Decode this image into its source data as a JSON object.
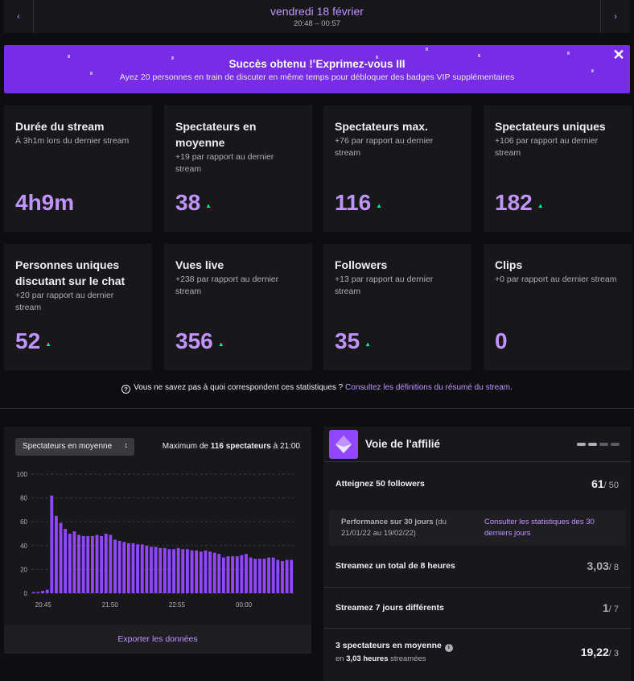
{
  "header": {
    "date": "vendredi 18 février",
    "time_range": "20:48 – 00:57",
    "prev_icon": "chevron-left-icon",
    "next_icon": "chevron-right-icon"
  },
  "banner": {
    "title": "Succès obtenu ! Exprimez-vous III",
    "subtitle": "Ayez 20 personnes en train de discuter en même temps pour débloquer des badges VIP supplémentaires",
    "close_icon": "close-icon",
    "color": "#772ce8"
  },
  "stats": [
    {
      "title": "Durée du stream",
      "subtitle": "À 3h1m lors du dernier stream",
      "value": "4h9m",
      "trend": ""
    },
    {
      "title": "Spectateurs en moyenne",
      "subtitle": "+19 par rapport au dernier stream",
      "value": "38",
      "trend": "up"
    },
    {
      "title": "Spectateurs max.",
      "subtitle": "+76 par rapport au dernier stream",
      "value": "116",
      "trend": "up"
    },
    {
      "title": "Spectateurs uniques",
      "subtitle": "+106 par rapport au dernier stream",
      "value": "182",
      "trend": "up"
    },
    {
      "title": "Personnes uniques discutant sur le chat",
      "subtitle": "+20 par rapport au dernier stream",
      "value": "52",
      "trend": "up"
    },
    {
      "title": "Vues live",
      "subtitle": "+238 par rapport au dernier stream",
      "value": "356",
      "trend": "up"
    },
    {
      "title": "Followers",
      "subtitle": "+13 par rapport au dernier stream",
      "value": "35",
      "trend": "up"
    },
    {
      "title": "Clips",
      "subtitle": "+0 par rapport au dernier stream",
      "value": "0",
      "trend": ""
    }
  ],
  "help": {
    "text": "Vous ne savez pas à quoi correspondent ces statistiques ?",
    "link": "Consultez les définitions du résumé du stream."
  },
  "chart_panel": {
    "select_label": "Spectateurs en moyenne",
    "max_prefix": "Maximum de",
    "max_value": "116 spectateurs",
    "max_suffix": "à 21:00",
    "export_label": "Exporter les données"
  },
  "chart_data": {
    "type": "bar",
    "ylim": [
      0,
      100
    ],
    "yticks": [
      "0",
      "20",
      "40",
      "60",
      "80",
      "100"
    ],
    "xticks": [
      "20:45",
      "21:50",
      "22:55",
      "00:00"
    ],
    "values": [
      1,
      1,
      2,
      3,
      82,
      65,
      59,
      54,
      50,
      52,
      49,
      48,
      48,
      48,
      49,
      48,
      50,
      49,
      45,
      44,
      43,
      42,
      42,
      41,
      41,
      40,
      39,
      39,
      38,
      38,
      37,
      37,
      38,
      37,
      37,
      36,
      36,
      35,
      36,
      35,
      34,
      33,
      30,
      31,
      31,
      31,
      32,
      33,
      30,
      29,
      29,
      29,
      30,
      30,
      28,
      27,
      28,
      28
    ],
    "bar_color": "#9147ff",
    "grid": true
  },
  "affiliate": {
    "title": "Voie de l'affilié",
    "logo_icon": "affiliate-badge-icon",
    "progress_steps": [
      true,
      true,
      false,
      false
    ],
    "followers_label": "Atteignez 50 followers",
    "followers_value": "61",
    "followers_goal": "/ 50",
    "perf_label_bold": "Performance sur 30 jours",
    "perf_label_rest": " (du 21/01/22 au 19/02/22)",
    "perf_link": "Consulter les statistiques des 30 derniers jours",
    "hours_label": "Streamez un total de 8 heures",
    "hours_value": "3,03",
    "hours_goal": "/ 8",
    "days_label": "Streamez 7 jours différents",
    "days_value": "1",
    "days_goal": "/ 7",
    "viewers_label": "3 spectateurs en moyenne",
    "viewers_note_prefix": "en",
    "viewers_note_bold": "3,03 heures",
    "viewers_note_suffix": "streamées",
    "viewers_value": "19,22",
    "viewers_goal": "/ 3",
    "info_icon": "info-icon"
  }
}
